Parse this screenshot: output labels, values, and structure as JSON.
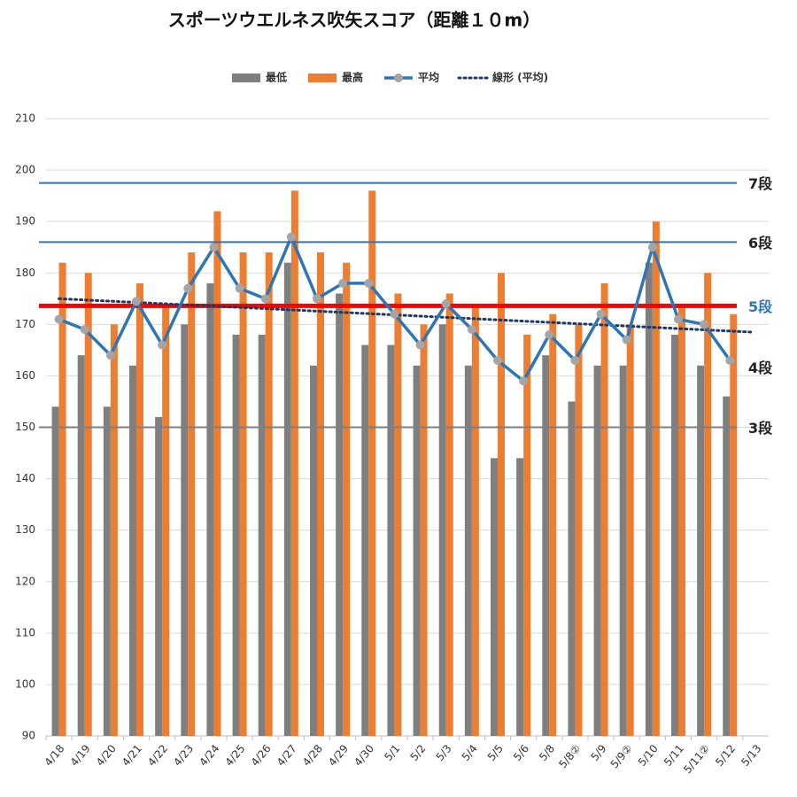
{
  "chart_data": {
    "type": "bar",
    "title": "スポーツウエルネス吹矢スコア（距離１０m）",
    "categories": [
      "4/18",
      "4/19",
      "4/20",
      "4/21",
      "4/22",
      "4/23",
      "4/24",
      "4/25",
      "4/26",
      "4/27",
      "4/28",
      "4/29",
      "4/30",
      "5/1",
      "5/2",
      "5/3",
      "5/4",
      "5/5",
      "5/6",
      "5/8",
      "5/8②",
      "5/9",
      "5/9②",
      "5/10",
      "5/11",
      "5/11②",
      "5/12",
      "5/13"
    ],
    "series": [
      {
        "name": "最低",
        "type": "bar",
        "color": "#7f7f7f",
        "values": [
          154,
          164,
          154,
          162,
          152,
          170,
          178,
          168,
          168,
          182,
          162,
          176,
          166,
          166,
          162,
          170,
          162,
          144,
          144,
          164,
          155,
          162,
          162,
          182,
          168,
          162,
          156,
          null
        ]
      },
      {
        "name": "最高",
        "type": "bar",
        "color": "#ed7d31",
        "values": [
          182,
          180,
          170,
          178,
          174,
          184,
          192,
          184,
          184,
          196,
          184,
          182,
          196,
          176,
          170,
          176,
          174,
          180,
          168,
          172,
          170,
          178,
          170,
          190,
          174,
          180,
          172,
          null
        ]
      },
      {
        "name": "平均",
        "type": "line",
        "color": "#2e75b6",
        "marker_color": "#a5a5a5",
        "values": [
          171,
          169,
          164,
          174.5,
          166,
          177,
          185,
          177,
          175,
          187,
          175,
          178,
          178,
          172,
          166,
          174,
          169,
          163,
          159,
          168,
          163,
          172,
          167,
          185,
          171,
          170,
          163,
          null
        ]
      }
    ],
    "trend": {
      "name": "線形 (平均)",
      "color": "#1f3864",
      "start": 175,
      "end": 168.5
    },
    "reference_lines": [
      {
        "label": "7段",
        "value": 197.5,
        "color": "#2e75b6",
        "label_color": "#222222",
        "width": 2,
        "show_line": true
      },
      {
        "label": "6段",
        "value": 186,
        "color": "#2e75b6",
        "label_color": "#222222",
        "width": 2,
        "show_line": true
      },
      {
        "label": "5段",
        "value": 173.6,
        "color": "#ff0000",
        "label_color": "#2e75b6",
        "width": 5,
        "show_line": true
      },
      {
        "label": "4段",
        "value": 161.7,
        "color": "#7f7f7f",
        "label_color": "#222222",
        "width": 2,
        "show_line": false
      },
      {
        "label": "3段",
        "value": 150,
        "color": "#7f7f7f",
        "label_color": "#222222",
        "width": 2,
        "show_line": true
      }
    ],
    "ylim": [
      90,
      210
    ],
    "yticks": [
      90,
      100,
      110,
      120,
      130,
      140,
      150,
      160,
      170,
      180,
      190,
      200,
      210
    ],
    "grid": true
  }
}
